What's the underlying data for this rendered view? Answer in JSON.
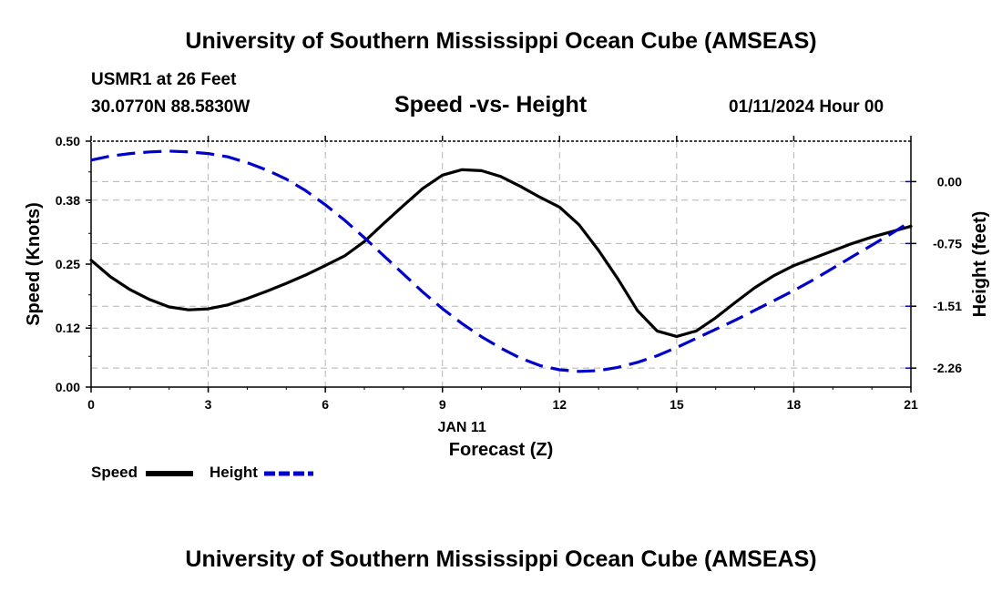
{
  "header": {
    "main_title": "University of Southern Mississippi Ocean Cube (AMSEAS)",
    "station": "USMR1 at 26 Feet",
    "coords": "30.0770N  88.5830W",
    "chart_title": "Speed -vs- Height",
    "datetime": "01/11/2024 Hour 00"
  },
  "footer": {
    "main_title": "University of Southern Mississippi Ocean Cube (AMSEAS)"
  },
  "legend": {
    "speed_label": "Speed",
    "height_label": "Height"
  },
  "colors": {
    "speed": "#000000",
    "height": "#0000cc",
    "grid": "#b4b4b4"
  },
  "chart_data": {
    "type": "line",
    "title": "Speed -vs- Height",
    "xlabel": "Forecast (Z)",
    "xlabel_date": "JAN 11",
    "ylabel_left": "Speed (Knots)",
    "ylabel_right": "Height (feet)",
    "x_ticks": [
      0,
      3,
      6,
      9,
      12,
      15,
      18,
      21
    ],
    "xlim": [
      0,
      21
    ],
    "y_left_ticks": [
      "0.00",
      "0.12",
      "0.25",
      "0.38",
      "0.50"
    ],
    "y_left_lim": [
      0,
      0.5
    ],
    "y_right_ticks": [
      "0.00",
      "-0.75",
      "-1.51",
      "-2.26"
    ],
    "y_right_values": [
      0.0,
      -0.75,
      -1.51,
      -2.26
    ],
    "y_right_lim": [
      -2.49,
      0.49
    ],
    "grid": true,
    "series": [
      {
        "name": "Speed",
        "axis": "left",
        "style": "solid",
        "x": [
          0,
          0.5,
          1,
          1.5,
          2,
          2.5,
          3,
          3.5,
          4,
          4.5,
          5,
          5.5,
          6,
          6.5,
          7,
          7.5,
          8,
          8.5,
          9,
          9.5,
          10,
          10.5,
          11,
          11.5,
          12,
          12.5,
          13,
          13.5,
          14,
          14.5,
          15,
          15.5,
          16,
          16.5,
          17,
          17.5,
          18,
          18.5,
          19,
          19.5,
          20,
          20.5,
          21
        ],
        "values": [
          0.258,
          0.224,
          0.198,
          0.178,
          0.163,
          0.157,
          0.159,
          0.167,
          0.18,
          0.195,
          0.211,
          0.228,
          0.247,
          0.267,
          0.296,
          0.333,
          0.369,
          0.404,
          0.431,
          0.442,
          0.44,
          0.428,
          0.408,
          0.386,
          0.366,
          0.33,
          0.278,
          0.219,
          0.155,
          0.114,
          0.103,
          0.114,
          0.141,
          0.172,
          0.202,
          0.227,
          0.247,
          0.262,
          0.277,
          0.292,
          0.305,
          0.316,
          0.327
        ]
      },
      {
        "name": "Height",
        "axis": "right",
        "style": "dashed",
        "x": [
          0,
          0.5,
          1,
          1.5,
          2,
          2.5,
          3,
          3.5,
          4,
          4.5,
          5,
          5.5,
          6,
          6.5,
          7,
          7.5,
          8,
          8.5,
          9,
          9.5,
          10,
          10.5,
          11,
          11.5,
          12,
          12.5,
          13,
          13.5,
          14,
          14.5,
          15,
          15.5,
          16,
          16.5,
          17,
          17.5,
          18,
          18.5,
          19,
          19.5,
          20,
          20.5,
          21
        ],
        "values": [
          0.26,
          0.31,
          0.34,
          0.36,
          0.37,
          0.36,
          0.34,
          0.3,
          0.23,
          0.14,
          0.03,
          -0.11,
          -0.28,
          -0.47,
          -0.68,
          -0.9,
          -1.12,
          -1.34,
          -1.54,
          -1.72,
          -1.88,
          -2.02,
          -2.14,
          -2.23,
          -2.28,
          -2.3,
          -2.29,
          -2.25,
          -2.19,
          -2.11,
          -2.01,
          -1.9,
          -1.79,
          -1.68,
          -1.56,
          -1.44,
          -1.32,
          -1.19,
          -1.05,
          -0.91,
          -0.77,
          -0.63,
          -0.48
        ]
      }
    ]
  }
}
